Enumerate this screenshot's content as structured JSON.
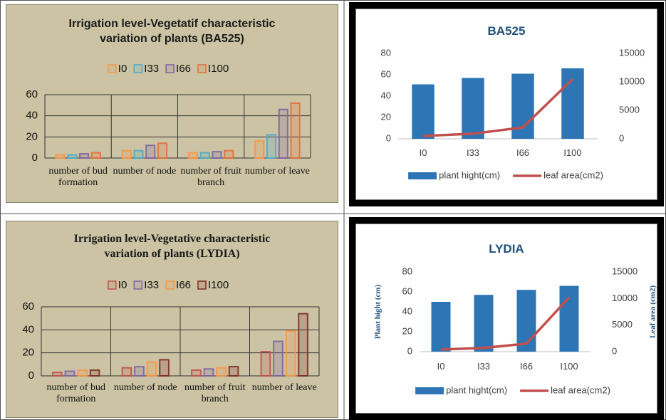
{
  "chart_data": [
    {
      "type": "bar",
      "title": "Irrigation level-Vegetatif characteristic variation of plants (BA525)",
      "categories": [
        "number of bud formation",
        "number of node",
        "number of fruit branch",
        "number of leave"
      ],
      "series": [
        {
          "name": "I0",
          "color": "#f79646",
          "values": [
            3,
            7,
            5,
            16
          ]
        },
        {
          "name": "I33",
          "color": "#4bacc6",
          "values": [
            3,
            7,
            5,
            22
          ]
        },
        {
          "name": "I66",
          "color": "#8064a2",
          "values": [
            4,
            12,
            6,
            46
          ]
        },
        {
          "name": "I100",
          "color": "#e0703a",
          "values": [
            5,
            14,
            7,
            52
          ]
        }
      ],
      "ylim": [
        0,
        60
      ],
      "yticks": [
        0,
        20,
        40,
        60
      ],
      "grid": true,
      "legend": "top"
    },
    {
      "type": "combo",
      "title": "BA525",
      "categories": [
        "I0",
        "I33",
        "I66",
        "I100"
      ],
      "series": [
        {
          "name": "plant hight(cm)",
          "color": "#2e75b6",
          "values": [
            51,
            57,
            61,
            66
          ]
        },
        {
          "name": "leaf area(cm2)",
          "color": "#c0504d",
          "axis": "y2",
          "values": [
            500,
            900,
            2000,
            10500
          ]
        }
      ],
      "ylim": [
        0,
        80
      ],
      "yticks": [
        0,
        20,
        40,
        60,
        80
      ],
      "y2lim": [
        0,
        15000
      ],
      "y2ticks": [
        0,
        5000,
        10000,
        15000
      ],
      "grid": false,
      "legend": "bottom"
    },
    {
      "type": "bar",
      "title": "Irrigation level-Vegetative characteristic variation of plants (LYDIA)",
      "categories": [
        "number of bud formation",
        "number of node",
        "number of fruit branch",
        "number of leave"
      ],
      "series": [
        {
          "name": "I0",
          "color": "#c0504d",
          "values": [
            3,
            7,
            5,
            21
          ]
        },
        {
          "name": "I33",
          "color": "#8064a2",
          "values": [
            4,
            8,
            6,
            30
          ]
        },
        {
          "name": "I66",
          "color": "#f79646",
          "values": [
            5,
            12,
            7,
            39
          ]
        },
        {
          "name": "I100",
          "color": "#7f2a24",
          "values": [
            5,
            14,
            8,
            54
          ]
        }
      ],
      "ylim": [
        0,
        60
      ],
      "yticks": [
        0,
        20,
        40,
        60
      ],
      "grid": true,
      "legend": "top"
    },
    {
      "type": "combo",
      "title": "LYDIA",
      "categories": [
        "I0",
        "I33",
        "I66",
        "I100"
      ],
      "ylabel": "Plant hight (cm)",
      "y2label": "Leaf area (cm2)",
      "series": [
        {
          "name": "plant hight(cm)",
          "color": "#2e75b6",
          "values": [
            50,
            57,
            62,
            66
          ]
        },
        {
          "name": "leaf area(cm2)",
          "color": "#c0504d",
          "axis": "y2",
          "values": [
            400,
            700,
            1500,
            10200
          ]
        }
      ],
      "ylim": [
        0,
        80
      ],
      "yticks": [
        0,
        20,
        40,
        60,
        80
      ],
      "y2lim": [
        0,
        15000
      ],
      "y2ticks": [
        0,
        5000,
        10000,
        15000
      ],
      "grid": false,
      "legend": "bottom"
    }
  ]
}
